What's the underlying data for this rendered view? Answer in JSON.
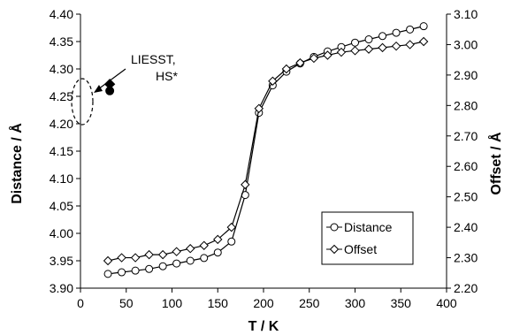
{
  "chart_data": {
    "type": "line",
    "xlabel": "T / K",
    "ylabel": "Distance / Å",
    "y2label": "Offset / Å",
    "xlim": [
      0,
      400
    ],
    "ylim": [
      3.9,
      4.4
    ],
    "y2lim": [
      2.2,
      3.1
    ],
    "x_ticks": [
      "0",
      "50",
      "100",
      "150",
      "200",
      "250",
      "300",
      "350",
      "400"
    ],
    "y_ticks": [
      "3.90",
      "3.95",
      "4.00",
      "4.05",
      "4.10",
      "4.15",
      "4.20",
      "4.25",
      "4.30",
      "4.35",
      "4.40"
    ],
    "y2_ticks": [
      "2.20",
      "2.30",
      "2.40",
      "2.50",
      "2.60",
      "2.70",
      "2.80",
      "2.90",
      "3.00",
      "3.10"
    ],
    "grid": false,
    "legend": "bottom-right",
    "series": [
      {
        "name": "Distance",
        "axis": "left",
        "marker": "circle-open",
        "x": [
          30,
          45,
          60,
          75,
          90,
          105,
          120,
          135,
          150,
          165,
          180,
          195,
          210,
          225,
          240,
          255,
          270,
          285,
          300,
          315,
          330,
          345,
          360,
          375
        ],
        "y": [
          3.926,
          3.929,
          3.932,
          3.935,
          3.94,
          3.945,
          3.95,
          3.955,
          3.965,
          3.985,
          4.07,
          4.22,
          4.27,
          4.295,
          4.31,
          4.322,
          4.332,
          4.34,
          4.348,
          4.354,
          4.36,
          4.366,
          4.372,
          4.378
        ]
      },
      {
        "name": "Offset",
        "axis": "right",
        "marker": "diamond-open",
        "x": [
          30,
          45,
          60,
          75,
          90,
          105,
          120,
          135,
          150,
          165,
          180,
          195,
          210,
          225,
          240,
          255,
          270,
          285,
          300,
          315,
          330,
          345,
          360,
          375
        ],
        "y": [
          2.29,
          2.3,
          2.3,
          2.31,
          2.31,
          2.32,
          2.33,
          2.34,
          2.36,
          2.4,
          2.54,
          2.79,
          2.88,
          2.92,
          2.94,
          2.955,
          2.965,
          2.975,
          2.98,
          2.985,
          2.99,
          2.995,
          3.0,
          3.01
        ]
      }
    ],
    "highlight_points": [
      {
        "series": "Offset",
        "axis": "right",
        "marker": "diamond-filled",
        "x": 32,
        "y": 2.87
      },
      {
        "series": "Distance",
        "axis": "left",
        "marker": "circle-filled",
        "x": 32,
        "y": 4.26
      }
    ],
    "annotation": {
      "lines": [
        "LIESST,",
        "HS*"
      ]
    }
  }
}
